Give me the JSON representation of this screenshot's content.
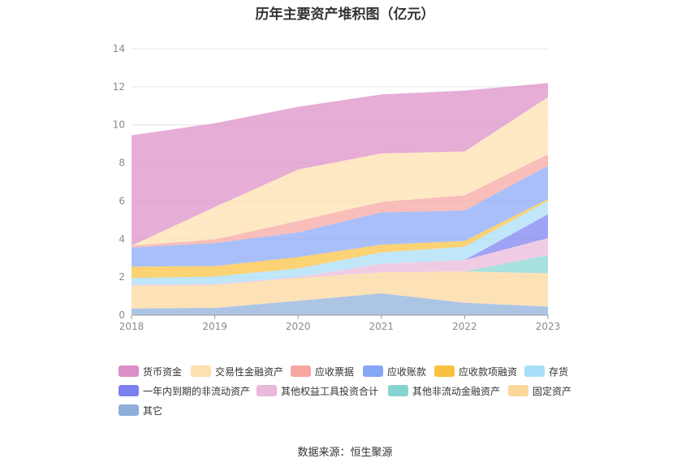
{
  "chart_data": {
    "type": "area",
    "stacked": true,
    "title": "历年主要资产堆积图（亿元）",
    "x": [
      "2018",
      "2019",
      "2020",
      "2021",
      "2022",
      "2023"
    ],
    "ylim": [
      0,
      14
    ],
    "yticks": [
      0,
      2,
      4,
      6,
      8,
      10,
      12,
      14
    ],
    "grid": true,
    "legend_position": "bottom",
    "series": [
      {
        "name": "其它",
        "color": "#8eaedb",
        "values": [
          0.35,
          0.38,
          0.75,
          1.15,
          0.65,
          0.45
        ]
      },
      {
        "name": "固定资产",
        "color": "#fcd79b",
        "values": [
          1.2,
          1.2,
          1.2,
          1.1,
          1.65,
          1.75
        ]
      },
      {
        "name": "其他非流动金融资产",
        "color": "#85d4d1",
        "values": [
          0.0,
          0.0,
          0.0,
          0.0,
          0.0,
          0.95
        ]
      },
      {
        "name": "其他权益工具投资合计",
        "color": "#eab8da",
        "values": [
          0.05,
          0.05,
          0.05,
          0.45,
          0.6,
          0.9
        ]
      },
      {
        "name": "一年内到期的非流动资产",
        "color": "#7b7ff0",
        "values": [
          0.0,
          0.0,
          0.0,
          0.0,
          0.0,
          1.25
        ]
      },
      {
        "name": "存货",
        "color": "#a8def7",
        "values": [
          0.35,
          0.4,
          0.45,
          0.6,
          0.7,
          0.7
        ]
      },
      {
        "name": "应收款项融资",
        "color": "#f9c13f",
        "values": [
          0.6,
          0.55,
          0.6,
          0.4,
          0.3,
          0.1
        ]
      },
      {
        "name": "应收账款",
        "color": "#86a6f6",
        "values": [
          1.0,
          1.2,
          1.3,
          1.7,
          1.6,
          1.75
        ]
      },
      {
        "name": "应收票据",
        "color": "#f7a59f",
        "values": [
          0.1,
          0.2,
          0.6,
          0.55,
          0.8,
          0.6
        ]
      },
      {
        "name": "交易性金融资产",
        "color": "#fde0ad",
        "values": [
          0.0,
          1.7,
          2.7,
          2.55,
          2.3,
          3.0
        ]
      },
      {
        "name": "货币资金",
        "color": "#dc8ec6",
        "values": [
          5.8,
          4.4,
          3.3,
          3.1,
          3.2,
          0.75
        ]
      }
    ]
  },
  "legend": {
    "items": [
      {
        "label": "货币资金",
        "color": "#dc8ec6"
      },
      {
        "label": "交易性金融资产",
        "color": "#fde0ad"
      },
      {
        "label": "应收票据",
        "color": "#f7a59f"
      },
      {
        "label": "应收账款",
        "color": "#86a6f6"
      },
      {
        "label": "应收款项融资",
        "color": "#f9c13f"
      },
      {
        "label": "存货",
        "color": "#a8def7"
      },
      {
        "label": "一年内到期的非流动资产",
        "color": "#7b7ff0"
      },
      {
        "label": "其他权益工具投资合计",
        "color": "#eab8da"
      },
      {
        "label": "其他非流动金融资产",
        "color": "#85d4d1"
      },
      {
        "label": "固定资产",
        "color": "#fcd79b"
      },
      {
        "label": "其它",
        "color": "#8eaedb"
      }
    ]
  },
  "footer": {
    "source": "数据来源：恒生聚源"
  }
}
